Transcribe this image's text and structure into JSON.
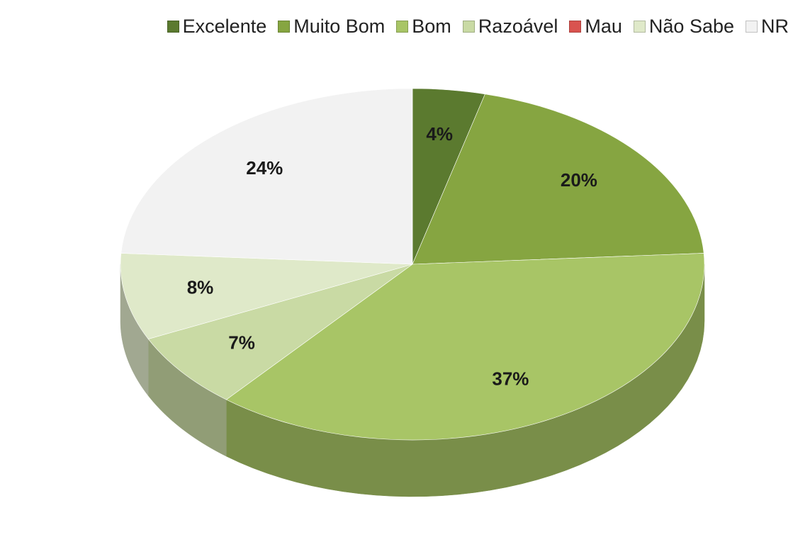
{
  "chart_data": {
    "type": "pie",
    "categories": [
      "Excelente",
      "Muito Bom",
      "Bom",
      "Razoável",
      "Mau",
      "Não Sabe",
      "NR"
    ],
    "values": [
      4,
      20,
      37,
      7,
      0,
      8,
      24
    ],
    "value_labels": [
      "4%",
      "20%",
      "37%",
      "7%",
      null,
      "8%",
      "24%"
    ],
    "colors": [
      "#5b7a2f",
      "#86a541",
      "#a8c566",
      "#c9daa4",
      "#d9534f",
      "#dfe9c9",
      "#f2f2f2"
    ],
    "legend": "top"
  }
}
